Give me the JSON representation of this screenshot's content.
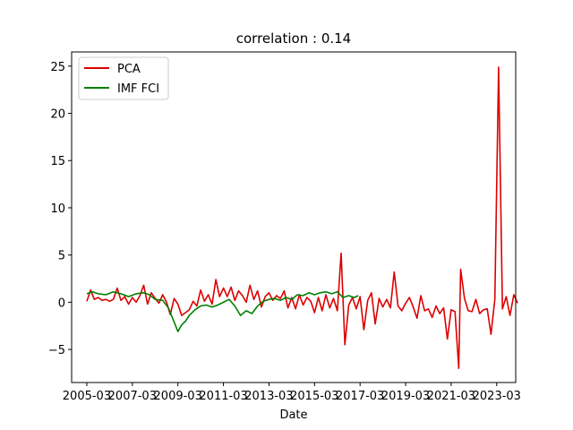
{
  "chart_data": {
    "type": "line",
    "title": "correlation : 0.14",
    "xlabel": "Date",
    "ylabel": "",
    "x_ticks": [
      "2005-03",
      "2007-03",
      "2009-03",
      "2011-03",
      "2013-03",
      "2015-03",
      "2017-03",
      "2019-03",
      "2021-03",
      "2023-03"
    ],
    "x_range": [
      "2004-07",
      "2024-01"
    ],
    "y_ticks": [
      -5,
      0,
      5,
      10,
      15,
      20,
      25
    ],
    "ylim": [
      -8.5,
      26.5
    ],
    "grid": false,
    "legend_position": "top-left",
    "series": [
      {
        "name": "PCA",
        "color": "#dd0000",
        "points": [
          [
            "2005-03",
            0.1
          ],
          [
            "2005-05",
            1.3
          ],
          [
            "2005-07",
            0.3
          ],
          [
            "2005-09",
            0.5
          ],
          [
            "2005-11",
            0.2
          ],
          [
            "2006-01",
            0.3
          ],
          [
            "2006-03",
            0.1
          ],
          [
            "2006-05",
            0.3
          ],
          [
            "2006-07",
            1.5
          ],
          [
            "2006-09",
            0.2
          ],
          [
            "2006-11",
            0.6
          ],
          [
            "2007-01",
            -0.2
          ],
          [
            "2007-03",
            0.5
          ],
          [
            "2007-05",
            0.0
          ],
          [
            "2007-07",
            0.7
          ],
          [
            "2007-09",
            1.8
          ],
          [
            "2007-11",
            -0.2
          ],
          [
            "2008-01",
            1.0
          ],
          [
            "2008-03",
            0.4
          ],
          [
            "2008-05",
            -0.1
          ],
          [
            "2008-07",
            0.8
          ],
          [
            "2008-09",
            0.0
          ],
          [
            "2008-11",
            -1.3
          ],
          [
            "2009-01",
            0.4
          ],
          [
            "2009-03",
            -0.2
          ],
          [
            "2009-05",
            -1.4
          ],
          [
            "2009-07",
            -1.1
          ],
          [
            "2009-09",
            -0.8
          ],
          [
            "2009-11",
            0.1
          ],
          [
            "2010-01",
            -0.4
          ],
          [
            "2010-03",
            1.3
          ],
          [
            "2010-05",
            0.1
          ],
          [
            "2010-07",
            0.8
          ],
          [
            "2010-09",
            -0.2
          ],
          [
            "2010-11",
            2.4
          ],
          [
            "2011-01",
            0.6
          ],
          [
            "2011-03",
            1.5
          ],
          [
            "2011-05",
            0.6
          ],
          [
            "2011-07",
            1.6
          ],
          [
            "2011-09",
            0.2
          ],
          [
            "2011-11",
            1.2
          ],
          [
            "2012-01",
            0.7
          ],
          [
            "2012-03",
            0.0
          ],
          [
            "2012-05",
            1.8
          ],
          [
            "2012-07",
            0.3
          ],
          [
            "2012-09",
            1.2
          ],
          [
            "2012-11",
            -0.5
          ],
          [
            "2013-01",
            0.6
          ],
          [
            "2013-03",
            1.0
          ],
          [
            "2013-05",
            0.2
          ],
          [
            "2013-07",
            0.7
          ],
          [
            "2013-09",
            0.4
          ],
          [
            "2013-11",
            1.2
          ],
          [
            "2014-01",
            -0.6
          ],
          [
            "2014-03",
            0.5
          ],
          [
            "2014-05",
            -0.7
          ],
          [
            "2014-07",
            0.8
          ],
          [
            "2014-09",
            -0.3
          ],
          [
            "2014-11",
            0.5
          ],
          [
            "2015-01",
            0.1
          ],
          [
            "2015-03",
            -1.1
          ],
          [
            "2015-05",
            0.5
          ],
          [
            "2015-07",
            -0.9
          ],
          [
            "2015-09",
            0.8
          ],
          [
            "2015-11",
            -0.6
          ],
          [
            "2016-01",
            0.4
          ],
          [
            "2016-03",
            -0.9
          ],
          [
            "2016-05",
            5.2
          ],
          [
            "2016-07",
            -4.5
          ],
          [
            "2016-09",
            -0.3
          ],
          [
            "2016-11",
            0.5
          ],
          [
            "2017-01",
            -0.7
          ],
          [
            "2017-03",
            0.6
          ],
          [
            "2017-05",
            -2.9
          ],
          [
            "2017-07",
            0.2
          ],
          [
            "2017-09",
            1.0
          ],
          [
            "2017-11",
            -2.3
          ],
          [
            "2018-01",
            0.4
          ],
          [
            "2018-03",
            -0.5
          ],
          [
            "2018-05",
            0.3
          ],
          [
            "2018-07",
            -0.6
          ],
          [
            "2018-09",
            3.2
          ],
          [
            "2018-11",
            -0.4
          ],
          [
            "2019-01",
            -0.9
          ],
          [
            "2019-03",
            -0.1
          ],
          [
            "2019-05",
            0.5
          ],
          [
            "2019-07",
            -0.5
          ],
          [
            "2019-09",
            -1.7
          ],
          [
            "2019-11",
            0.7
          ],
          [
            "2020-01",
            -0.9
          ],
          [
            "2020-03",
            -0.7
          ],
          [
            "2020-05",
            -1.6
          ],
          [
            "2020-07",
            -0.4
          ],
          [
            "2020-09",
            -1.2
          ],
          [
            "2020-11",
            -0.6
          ],
          [
            "2021-01",
            -3.9
          ],
          [
            "2021-03",
            -0.8
          ],
          [
            "2021-05",
            -1.0
          ],
          [
            "2021-07",
            -7.0
          ],
          [
            "2021-08",
            3.5
          ],
          [
            "2021-10",
            0.4
          ],
          [
            "2021-12",
            -0.9
          ],
          [
            "2022-02",
            -1.0
          ],
          [
            "2022-04",
            0.3
          ],
          [
            "2022-06",
            -1.2
          ],
          [
            "2022-08",
            -0.8
          ],
          [
            "2022-10",
            -0.7
          ],
          [
            "2022-12",
            -3.4
          ],
          [
            "2023-02",
            0.3
          ],
          [
            "2023-04",
            24.9
          ],
          [
            "2023-06",
            -0.7
          ],
          [
            "2023-08",
            0.6
          ],
          [
            "2023-10",
            -1.4
          ],
          [
            "2023-12",
            0.8
          ],
          [
            "2024-02",
            -0.1
          ]
        ]
      },
      {
        "name": "IMF FCI",
        "color": "#008000",
        "points": [
          [
            "2005-03",
            0.9
          ],
          [
            "2005-06",
            1.1
          ],
          [
            "2005-09",
            0.9
          ],
          [
            "2006-01",
            0.8
          ],
          [
            "2006-05",
            1.1
          ],
          [
            "2006-09",
            0.9
          ],
          [
            "2007-01",
            0.6
          ],
          [
            "2007-05",
            0.9
          ],
          [
            "2007-09",
            1.0
          ],
          [
            "2007-12",
            0.8
          ],
          [
            "2008-03",
            0.3
          ],
          [
            "2008-07",
            0.2
          ],
          [
            "2008-10",
            -0.6
          ],
          [
            "2009-01",
            -2.1
          ],
          [
            "2009-03",
            -3.1
          ],
          [
            "2009-05",
            -2.4
          ],
          [
            "2009-07",
            -2.0
          ],
          [
            "2009-09",
            -1.4
          ],
          [
            "2009-12",
            -0.8
          ],
          [
            "2010-03",
            -0.4
          ],
          [
            "2010-06",
            -0.3
          ],
          [
            "2010-09",
            -0.5
          ],
          [
            "2010-12",
            -0.3
          ],
          [
            "2011-03",
            0.0
          ],
          [
            "2011-06",
            0.3
          ],
          [
            "2011-09",
            -0.4
          ],
          [
            "2011-12",
            -1.4
          ],
          [
            "2012-03",
            -0.9
          ],
          [
            "2012-06",
            -1.2
          ],
          [
            "2012-09",
            -0.4
          ],
          [
            "2012-12",
            0.1
          ],
          [
            "2013-03",
            0.3
          ],
          [
            "2013-06",
            0.4
          ],
          [
            "2013-09",
            0.2
          ],
          [
            "2013-12",
            0.5
          ],
          [
            "2014-03",
            0.3
          ],
          [
            "2014-06",
            0.8
          ],
          [
            "2014-09",
            0.7
          ],
          [
            "2014-12",
            1.0
          ],
          [
            "2015-03",
            0.8
          ],
          [
            "2015-06",
            1.0
          ],
          [
            "2015-09",
            1.1
          ],
          [
            "2015-12",
            0.9
          ],
          [
            "2016-03",
            1.1
          ],
          [
            "2016-06",
            0.5
          ],
          [
            "2016-09",
            0.7
          ],
          [
            "2016-12",
            0.5
          ],
          [
            "2017-02",
            0.7
          ]
        ]
      }
    ]
  }
}
